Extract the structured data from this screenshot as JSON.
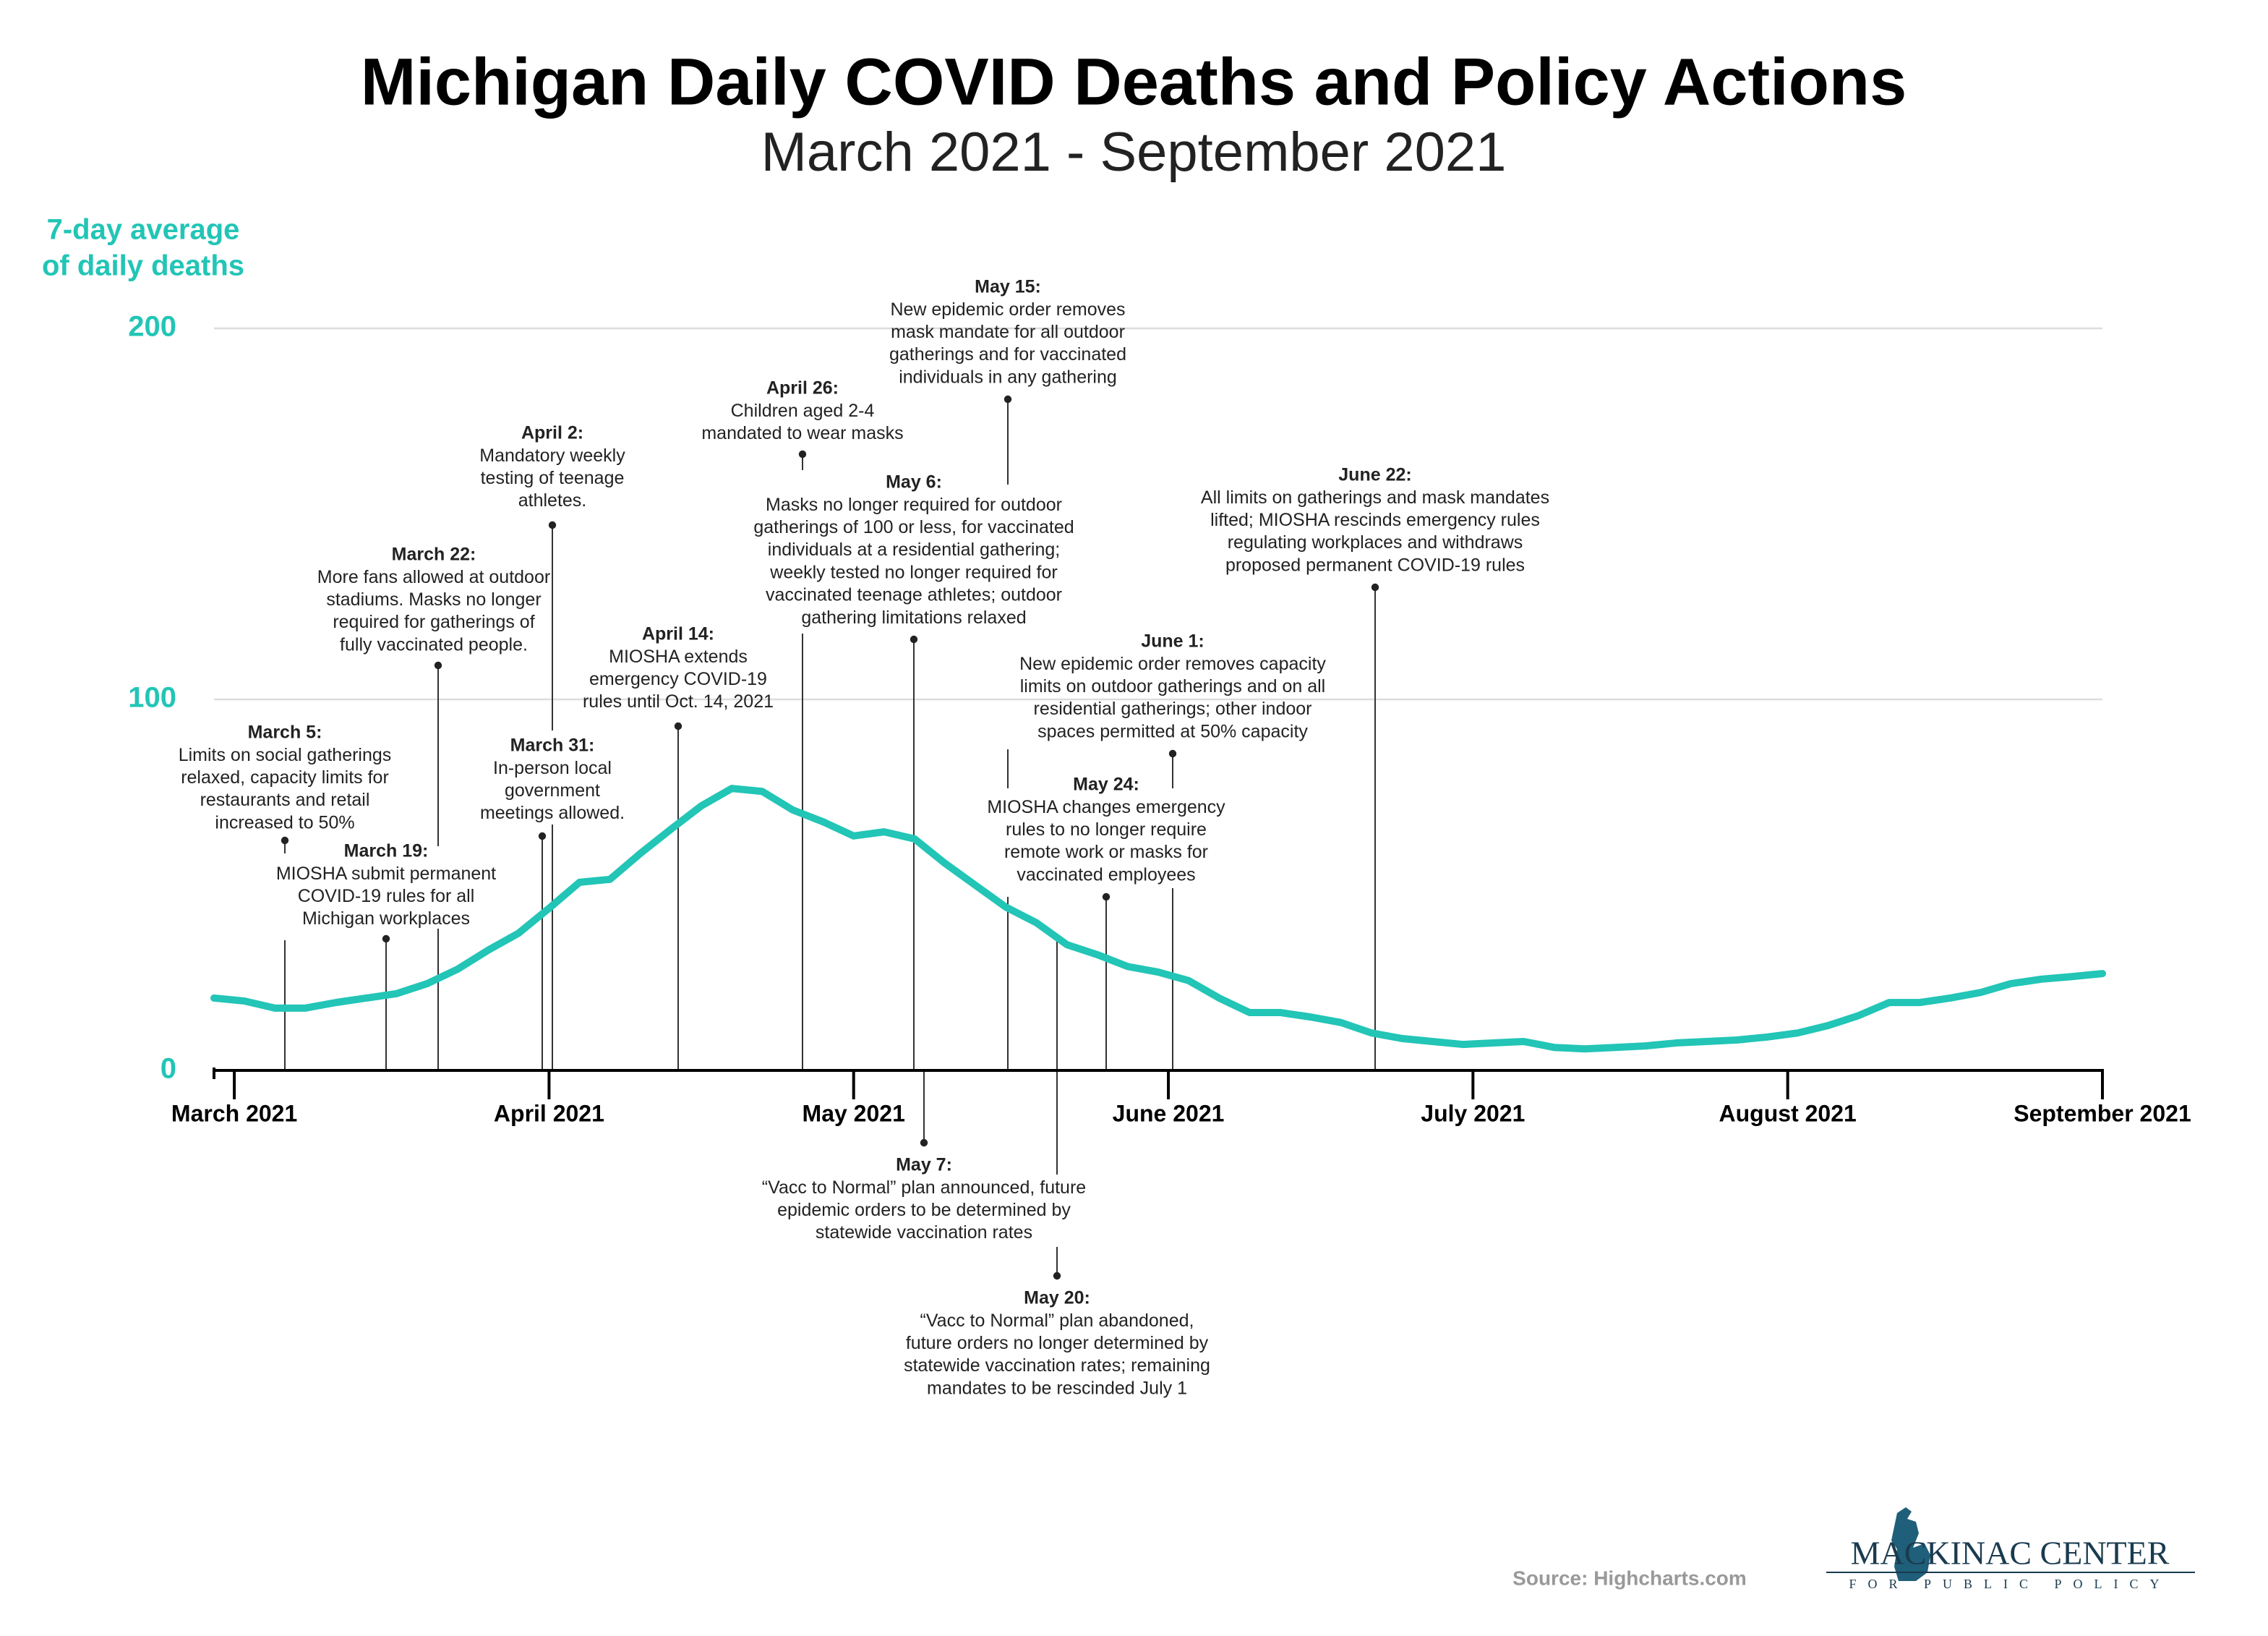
{
  "chart_data": {
    "type": "line",
    "title": "Michigan Daily COVID Deaths and Policy Actions",
    "subtitle": "March 2021 - September 2021",
    "y_label": [
      "7-day average",
      "of daily deaths"
    ],
    "color": "#22c5b6",
    "x": [
      58,
      61,
      64,
      67,
      70,
      73,
      76,
      79,
      82,
      85,
      88,
      91,
      94,
      97,
      100,
      103,
      106,
      109,
      112,
      115,
      118,
      121,
      124,
      127,
      130,
      133,
      136,
      139,
      142,
      145,
      148,
      151,
      154,
      157,
      160,
      163,
      166,
      169,
      172,
      175,
      178,
      181,
      184,
      187,
      190,
      193,
      196,
      199,
      202,
      205,
      208,
      211,
      214,
      217,
      220,
      223,
      226,
      229,
      232,
      235,
      238,
      241,
      244
    ],
    "values": [
      19.5,
      18.7,
      16.8,
      16.8,
      18.3,
      19.5,
      20.7,
      23.4,
      27.3,
      32.4,
      37,
      43.7,
      50.7,
      51.5,
      58.5,
      65,
      71.3,
      76,
      75.2,
      70.2,
      67,
      63.2,
      64.3,
      62.4,
      55.8,
      49.9,
      44,
      39.8,
      33.9,
      31.2,
      28,
      26.5,
      24.2,
      19.5,
      15.6,
      15.6,
      14.4,
      12.9,
      10.1,
      8.6,
      7.8,
      7,
      7.4,
      7.8,
      6.2,
      5.8,
      6.2,
      6.6,
      7.4,
      7.8,
      8.2,
      9,
      10.1,
      12.1,
      14.8,
      18.3,
      18.3,
      19.5,
      21,
      23.4,
      24.6,
      25.3,
      26.1
    ],
    "xlim": [
      58,
      244
    ],
    "xticks": [
      {
        "value": 60,
        "label": "March 2021"
      },
      {
        "value": 91,
        "label": "April 2021"
      },
      {
        "value": 121,
        "label": "May 2021"
      },
      {
        "value": 152,
        "label": "June 2021"
      },
      {
        "value": 182,
        "label": "July 2021"
      },
      {
        "value": 213,
        "label": "August 2021"
      },
      {
        "value": 244,
        "label": "September 2021"
      }
    ],
    "ylim": [
      0,
      200
    ],
    "yticks": [
      0,
      100,
      200
    ],
    "grid": true,
    "annotations": [
      {
        "date": "March 5:",
        "lines": [
          "Limits on social gatherings",
          "relaxed, capacity limits for",
          "restaurants and retail",
          "increased to 50%"
        ]
      },
      {
        "date": "March 19:",
        "lines": [
          "MIOSHA submit permanent",
          "COVID-19 rules for all",
          "Michigan workplaces"
        ]
      },
      {
        "date": "March 22:",
        "lines": [
          "More fans allowed at outdoor",
          "stadiums. Masks no longer",
          "required for gatherings of",
          "fully vaccinated people."
        ]
      },
      {
        "date": "March 31:",
        "lines": [
          "In-person local",
          "government",
          "meetings allowed."
        ]
      },
      {
        "date": "April 2:",
        "lines": [
          "Mandatory weekly",
          "testing of teenage",
          "athletes."
        ]
      },
      {
        "date": "April 14:",
        "lines": [
          "MIOSHA extends",
          "emergency COVID-19",
          "rules until Oct. 14, 2021"
        ]
      },
      {
        "date": "April 26:",
        "lines": [
          "Children aged 2-4",
          "mandated to wear masks"
        ]
      },
      {
        "date": "May 6:",
        "lines": [
          "Masks no longer required for outdoor",
          "gatherings of 100 or less, for vaccinated",
          "individuals at a residential gathering;",
          "weekly tested no longer required for",
          "vaccinated teenage athletes; outdoor",
          "gathering limitations relaxed"
        ]
      },
      {
        "date": "May 7:",
        "lines": [
          "“Vacc to Normal” plan announced, future",
          "epidemic orders to be determined by",
          "statewide vaccination rates"
        ]
      },
      {
        "date": "May 15:",
        "lines": [
          "New epidemic order removes",
          "mask mandate for all outdoor",
          "gatherings and for vaccinated",
          "individuals in any gathering"
        ]
      },
      {
        "date": "May 20:",
        "lines": [
          "“Vacc to Normal” plan abandoned,",
          "future orders no longer determined by",
          "statewide vaccination rates; remaining",
          "mandates to be rescinded July 1"
        ]
      },
      {
        "date": "May 24:",
        "lines": [
          "MIOSHA changes emergency",
          "rules to no longer require",
          "remote work or masks for",
          "vaccinated employees"
        ]
      },
      {
        "date": "June 1:",
        "lines": [
          "New epidemic order removes capacity",
          "limits on outdoor gatherings and on all",
          "residential gatherings; other indoor",
          "spaces permitted at 50% capacity"
        ]
      },
      {
        "date": "June 22:",
        "lines": [
          "All limits on gatherings and mask mandates",
          "lifted; MIOSHA rescinds emergency rules",
          "regulating workplaces and withdraws",
          "proposed permanent COVID-19 rules"
        ]
      }
    ],
    "source": "Source: Highcharts.com",
    "logo": {
      "name": "MACKINAC CENTER",
      "tagline": "FOR PUBLIC POLICY"
    }
  }
}
